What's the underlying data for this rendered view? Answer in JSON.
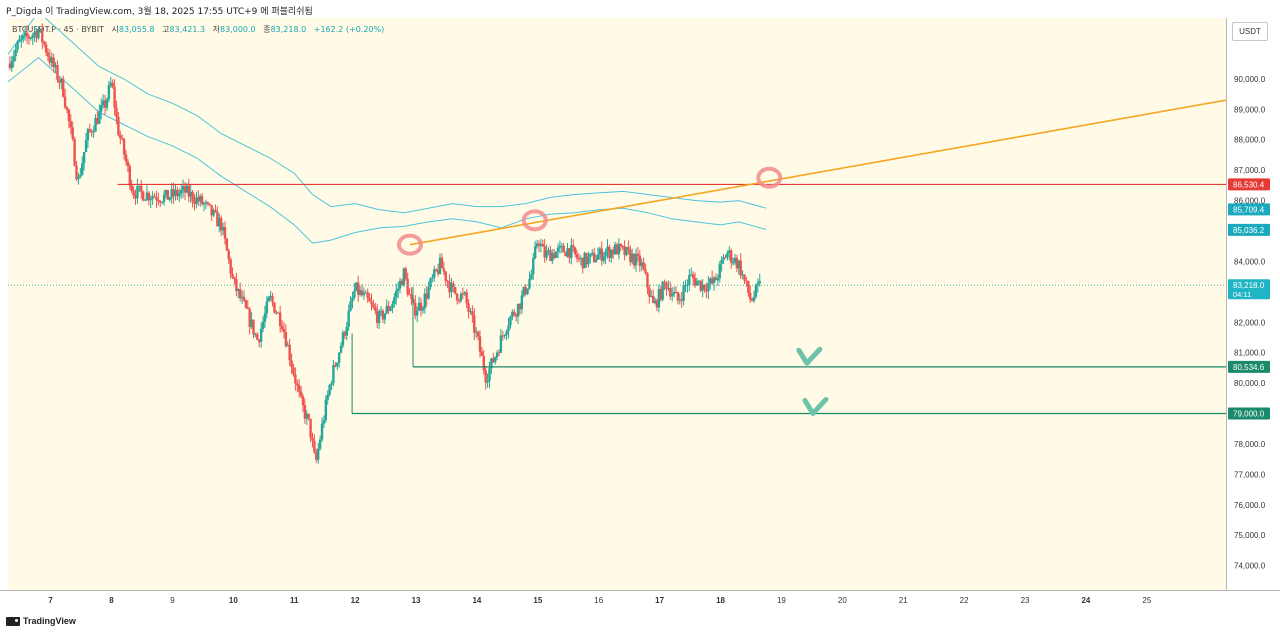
{
  "header": {
    "publish_line": "P_Digda 이 TradingView.com, 3월 18, 2025 17:55 UTC+9 에 퍼블리쉬됨"
  },
  "legend": {
    "symbol": "BTCUSDT.P · 45 · BYBIT",
    "open_label": "시",
    "open_value": "83,055.8",
    "high_label": "고",
    "high_value": "83,421.3",
    "low_label": "저",
    "low_value": "83,000.0",
    "close_label": "종",
    "close_value": "83,218.0",
    "change": "+162.2 (+0.20%)"
  },
  "currency": "USDT",
  "branding": "TradingView",
  "colors": {
    "background": "#fffbe6",
    "up": "#26a69a",
    "down": "#ef5350",
    "band": "#4fc3dc",
    "trendline": "#f5a623",
    "resistance": "#e53935",
    "support": "#1b8a6b",
    "marker": "#f28b8b",
    "check": "#6cc3aa"
  },
  "chart_data": {
    "type": "candlestick",
    "title": "",
    "y_axis": {
      "range": [
        73200,
        92000
      ],
      "ticks": [
        74000,
        75000,
        76000,
        77000,
        78000,
        79000,
        80000,
        81000,
        82000,
        83000,
        84000,
        85000,
        86000,
        87000,
        88000,
        89000,
        90000
      ],
      "tick_labels": [
        "74,000.0",
        "75,000.0",
        "76,000.0",
        "77,000.0",
        "78,000.0",
        "79,000.0",
        "80,000.0",
        "81,000.0",
        "82,000.0",
        "83,000.0",
        "84,000.0",
        "85,000.0",
        "86,000.0",
        "87,000.0",
        "88,000.0",
        "89,000.0",
        "90,000.0"
      ]
    },
    "x_axis": {
      "range": [
        6.3,
        26.3
      ],
      "ticks": [
        7,
        8,
        9,
        10,
        11,
        12,
        13,
        14,
        15,
        16,
        17,
        18,
        19,
        20,
        21,
        22,
        23,
        24,
        25
      ],
      "tick_labels": [
        "7",
        "8",
        "9",
        "10",
        "11",
        "12",
        "13",
        "14",
        "15",
        "16",
        "17",
        "18",
        "19",
        "20",
        "21",
        "22",
        "23",
        "24",
        "25"
      ],
      "bold_ticks": [
        "7",
        "8",
        "10",
        "11",
        "12",
        "13",
        "14",
        "15",
        "17",
        "18",
        "24"
      ]
    },
    "close_path": [
      [
        6.3,
        90500
      ],
      [
        6.5,
        91200
      ],
      [
        6.8,
        91600
      ],
      [
        7.0,
        90600
      ],
      [
        7.2,
        89700
      ],
      [
        7.35,
        88000
      ],
      [
        7.45,
        86600
      ],
      [
        7.6,
        88100
      ],
      [
        7.9,
        89200
      ],
      [
        8.0,
        89900
      ],
      [
        8.1,
        88400
      ],
      [
        8.2,
        87600
      ],
      [
        8.35,
        86300
      ],
      [
        8.6,
        86200
      ],
      [
        8.9,
        86100
      ],
      [
        9.2,
        86300
      ],
      [
        9.5,
        85900
      ],
      [
        9.8,
        85200
      ],
      [
        10.0,
        83300
      ],
      [
        10.2,
        82400
      ],
      [
        10.4,
        81400
      ],
      [
        10.6,
        82800
      ],
      [
        10.8,
        82000
      ],
      [
        10.95,
        80700
      ],
      [
        11.1,
        79400
      ],
      [
        11.25,
        78600
      ],
      [
        11.35,
        77300
      ],
      [
        11.45,
        78500
      ],
      [
        11.6,
        80100
      ],
      [
        11.8,
        81500
      ],
      [
        12.0,
        83100
      ],
      [
        12.2,
        82700
      ],
      [
        12.4,
        82100
      ],
      [
        12.6,
        82600
      ],
      [
        12.8,
        83600
      ],
      [
        12.95,
        82400
      ],
      [
        13.1,
        82600
      ],
      [
        13.25,
        83300
      ],
      [
        13.4,
        83900
      ],
      [
        13.6,
        83000
      ],
      [
        13.8,
        82800
      ],
      [
        14.0,
        81500
      ],
      [
        14.15,
        80200
      ],
      [
        14.3,
        80900
      ],
      [
        14.5,
        82000
      ],
      [
        14.7,
        82600
      ],
      [
        14.9,
        83600
      ],
      [
        15.0,
        84800
      ],
      [
        15.1,
        84200
      ],
      [
        15.3,
        84300
      ],
      [
        15.5,
        84400
      ],
      [
        15.7,
        84000
      ],
      [
        15.9,
        84100
      ],
      [
        16.1,
        84300
      ],
      [
        16.3,
        84400
      ],
      [
        16.5,
        84200
      ],
      [
        16.7,
        83900
      ],
      [
        16.9,
        82500
      ],
      [
        17.1,
        83300
      ],
      [
        17.3,
        82700
      ],
      [
        17.5,
        83500
      ],
      [
        17.7,
        83200
      ],
      [
        17.9,
        83300
      ],
      [
        18.1,
        84300
      ],
      [
        18.3,
        83900
      ],
      [
        18.5,
        82700
      ],
      [
        18.65,
        83218
      ]
    ],
    "bands": [
      {
        "name": "",
        "points": [
          [
            6.3,
            90800
          ],
          [
            6.8,
            92200
          ],
          [
            7.3,
            91300
          ],
          [
            7.8,
            90400
          ],
          [
            8.2,
            90000
          ],
          [
            8.6,
            89500
          ],
          [
            9.0,
            89200
          ],
          [
            9.4,
            88800
          ],
          [
            9.8,
            88200
          ],
          [
            10.2,
            87800
          ],
          [
            10.6,
            87400
          ],
          [
            11.0,
            86900
          ],
          [
            11.3,
            86200
          ],
          [
            11.6,
            85800
          ],
          [
            12.0,
            85900
          ],
          [
            12.4,
            85700
          ],
          [
            12.8,
            85600
          ],
          [
            13.2,
            85750
          ],
          [
            13.6,
            85900
          ],
          [
            14.0,
            85800
          ],
          [
            14.4,
            85800
          ],
          [
            14.8,
            85900
          ],
          [
            15.2,
            86100
          ],
          [
            15.6,
            86200
          ],
          [
            16.0,
            86250
          ],
          [
            16.4,
            86300
          ],
          [
            16.8,
            86200
          ],
          [
            17.2,
            86100
          ],
          [
            17.6,
            86000
          ],
          [
            18.0,
            85950
          ],
          [
            18.3,
            86000
          ],
          [
            18.75,
            85750
          ]
        ]
      },
      {
        "name": "",
        "points": [
          [
            6.3,
            89900
          ],
          [
            6.8,
            90700
          ],
          [
            7.3,
            89800
          ],
          [
            7.8,
            88900
          ],
          [
            8.2,
            88500
          ],
          [
            8.6,
            88100
          ],
          [
            9.0,
            87800
          ],
          [
            9.4,
            87400
          ],
          [
            9.8,
            86800
          ],
          [
            10.2,
            86300
          ],
          [
            10.6,
            85800
          ],
          [
            11.0,
            85200
          ],
          [
            11.3,
            84600
          ],
          [
            11.6,
            84700
          ],
          [
            12.0,
            84950
          ],
          [
            12.4,
            85100
          ],
          [
            12.8,
            85150
          ],
          [
            13.2,
            85300
          ],
          [
            13.6,
            85400
          ],
          [
            14.0,
            85300
          ],
          [
            14.4,
            85100
          ],
          [
            14.8,
            85400
          ],
          [
            15.2,
            85550
          ],
          [
            15.6,
            85600
          ],
          [
            16.0,
            85700
          ],
          [
            16.4,
            85750
          ],
          [
            16.8,
            85600
          ],
          [
            17.2,
            85400
          ],
          [
            17.6,
            85300
          ],
          [
            18.0,
            85200
          ],
          [
            18.3,
            85300
          ],
          [
            18.75,
            85050
          ]
        ]
      }
    ],
    "horizontal_lines": [
      {
        "name": "resistance",
        "value": 86530.4,
        "x_start": 8.1,
        "label": "86,530.4"
      },
      {
        "name": "support-1",
        "value": 80534.6,
        "x_start": 12.95,
        "label": "80,534.6"
      },
      {
        "name": "support-2",
        "value": 79000.0,
        "x_start": 11.95,
        "label": "79,000.0"
      }
    ],
    "trendline": {
      "x1": 12.9,
      "y1": 84550,
      "x2": 26.3,
      "y2": 89300
    },
    "price_labels": [
      {
        "name": "band-upper-label",
        "value": 85709.4,
        "label": "85,709.4"
      },
      {
        "name": "band-lower-label",
        "value": 85036.2,
        "label": "85,036.2"
      },
      {
        "name": "last-price-label",
        "value": 83218.0,
        "label": "83,218.0",
        "sublabel": "04:11"
      }
    ],
    "touch_markers": [
      {
        "x": 12.9,
        "y": 84550
      },
      {
        "x": 14.95,
        "y": 85350
      },
      {
        "x": 18.8,
        "y": 86750
      }
    ],
    "check_marks": [
      {
        "x": 19.45,
        "y": 80850
      },
      {
        "x": 19.55,
        "y": 79200
      }
    ]
  }
}
